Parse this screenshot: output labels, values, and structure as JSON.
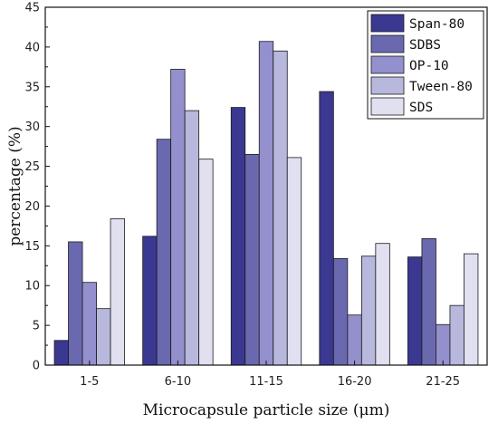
{
  "chart_data": {
    "type": "bar",
    "title": "",
    "xlabel": "Microcapsule particle size (μm)",
    "ylabel": "percentage (%)",
    "ylim": [
      0,
      45
    ],
    "yticks": [
      0,
      5,
      10,
      15,
      20,
      25,
      30,
      35,
      40,
      45
    ],
    "categories": [
      "1-5",
      "6-10",
      "11-15",
      "16-20",
      "21-25"
    ],
    "series": [
      {
        "name": "Span-80",
        "color": "#3b3892",
        "values": [
          3.1,
          16.2,
          32.4,
          34.4,
          13.6
        ]
      },
      {
        "name": "SDBS",
        "color": "#6a69b0",
        "values": [
          15.5,
          28.4,
          26.5,
          13.4,
          15.9
        ]
      },
      {
        "name": "OP-10",
        "color": "#9390cd",
        "values": [
          10.4,
          37.2,
          40.7,
          6.3,
          5.1
        ]
      },
      {
        "name": "Tween-80",
        "color": "#b8b7dc",
        "values": [
          7.1,
          32.0,
          39.5,
          13.7,
          7.5
        ]
      },
      {
        "name": "SDS",
        "color": "#e1e0f1",
        "values": [
          18.4,
          25.9,
          26.1,
          15.3,
          14.0
        ]
      }
    ],
    "grid": false,
    "legend_position": "top-right"
  }
}
